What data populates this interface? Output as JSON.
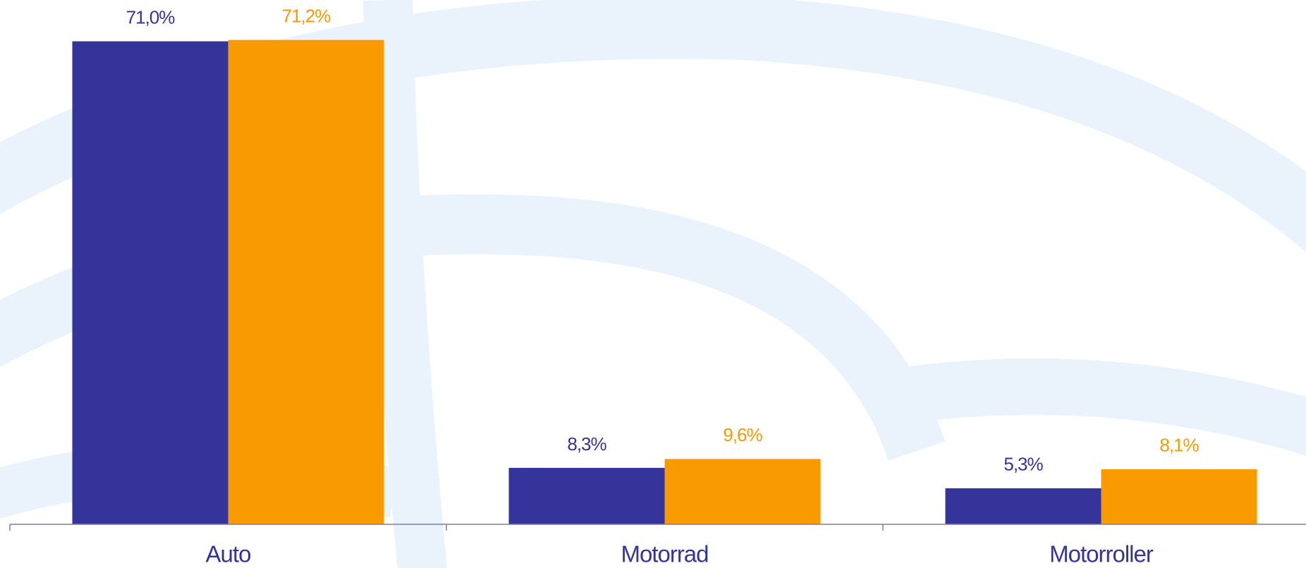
{
  "chart_data": {
    "type": "bar",
    "categories": [
      "Auto",
      "Motorrad",
      "Motorroller"
    ],
    "series": [
      {
        "color": "#35349a",
        "values": [
          71.0,
          8.3,
          5.3
        ],
        "value_labels": [
          "71,0%",
          "8,3%",
          "5,3%"
        ]
      },
      {
        "color": "#f99a00",
        "values": [
          71.2,
          9.6,
          8.1
        ],
        "value_labels": [
          "71,2%",
          "9,6%",
          "8,1%"
        ]
      }
    ],
    "ylim": [
      0,
      75
    ]
  }
}
